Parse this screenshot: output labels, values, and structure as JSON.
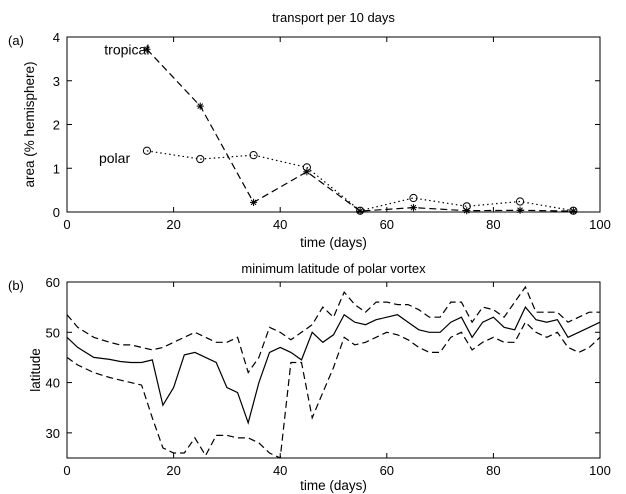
{
  "chart_data": [
    {
      "panel_label": "(a)",
      "type": "line",
      "title": "transport per 10 days",
      "xlabel": "time (days)",
      "ylabel": "area (% hemisphere)",
      "xlim": [
        0,
        100
      ],
      "ylim": [
        0,
        4
      ],
      "xticks": [
        0,
        20,
        40,
        60,
        80,
        100
      ],
      "yticks": [
        0,
        1,
        2,
        3,
        4
      ],
      "grid": false,
      "series": [
        {
          "name": "tropical",
          "style": "dashed",
          "marker": "asterisk",
          "x": [
            15,
            25,
            35,
            45,
            55,
            65,
            75,
            85,
            95
          ],
          "y": [
            3.72,
            2.42,
            0.22,
            0.92,
            0.02,
            0.1,
            0.03,
            0.04,
            0.02
          ]
        },
        {
          "name": "polar",
          "style": "dotted",
          "marker": "circle",
          "x": [
            15,
            25,
            35,
            45,
            55,
            65,
            75,
            85,
            95
          ],
          "y": [
            1.4,
            1.21,
            1.3,
            1.02,
            0.03,
            0.32,
            0.13,
            0.24,
            0.03
          ]
        }
      ]
    },
    {
      "panel_label": "(b)",
      "type": "line",
      "title": "minimum latitude of polar vortex",
      "xlabel": "time (days)",
      "ylabel": "latitude",
      "xlim": [
        0,
        100
      ],
      "ylim": [
        25,
        60
      ],
      "xticks": [
        0,
        20,
        40,
        60,
        80,
        100
      ],
      "yticks": [
        30,
        40,
        50,
        60
      ],
      "grid": false,
      "series": [
        {
          "style": "solid",
          "x": [
            0,
            2,
            5,
            8,
            10,
            12,
            14,
            16,
            18,
            20,
            22,
            24,
            26,
            28,
            30,
            32,
            34,
            36,
            38,
            40,
            42,
            44,
            46,
            48,
            50,
            52,
            54,
            56,
            58,
            60,
            62,
            64,
            66,
            68,
            70,
            72,
            74,
            76,
            78,
            80,
            82,
            84,
            86,
            88,
            90,
            92,
            94,
            96,
            98,
            100
          ],
          "y": [
            49,
            47,
            45,
            44.6,
            44.2,
            44,
            44,
            44.5,
            35.5,
            39,
            45.5,
            46,
            45,
            44,
            39,
            38,
            32,
            40,
            46,
            47,
            46,
            44.5,
            50,
            48,
            49.5,
            53.5,
            52,
            51.5,
            52.5,
            53,
            53.5,
            52,
            50.5,
            50,
            50,
            52,
            53,
            49,
            52,
            53,
            51,
            50.5,
            55,
            52.5,
            52,
            52.5,
            49,
            50,
            51,
            52
          ]
        },
        {
          "style": "dashed",
          "x": [
            0,
            2,
            5,
            8,
            10,
            12,
            14,
            16,
            18,
            20,
            22,
            24,
            26,
            28,
            30,
            32,
            34,
            36,
            38,
            40,
            42,
            44,
            46,
            48,
            50,
            52,
            54,
            56,
            58,
            60,
            62,
            64,
            66,
            68,
            70,
            72,
            74,
            76,
            78,
            80,
            82,
            84,
            86,
            88,
            90,
            92,
            94,
            96,
            98,
            100
          ],
          "y": [
            53.5,
            51,
            49,
            48,
            47.5,
            47.5,
            47,
            46.5,
            47,
            48,
            49,
            50,
            49,
            48,
            48,
            49,
            42,
            45,
            51,
            50,
            48.5,
            50,
            51.5,
            55,
            53,
            58,
            55.5,
            54,
            56,
            56,
            55.5,
            55.5,
            54.5,
            53,
            53,
            56,
            56,
            52,
            55,
            54.5,
            53,
            56,
            59,
            54,
            54,
            54,
            52,
            53,
            54,
            54
          ]
        },
        {
          "style": "dashed",
          "x": [
            0,
            2,
            5,
            8,
            10,
            12,
            14,
            16,
            18,
            20,
            22,
            24,
            26,
            28,
            30,
            32,
            34,
            36,
            38,
            40,
            42,
            44,
            46,
            48,
            50,
            52,
            54,
            56,
            58,
            60,
            62,
            64,
            66,
            68,
            70,
            72,
            74,
            76,
            78,
            80,
            82,
            84,
            86,
            88,
            90,
            92,
            94,
            96,
            98,
            100
          ],
          "y": [
            45,
            43.5,
            42,
            41,
            40.5,
            40,
            39.5,
            33,
            27,
            26,
            26,
            29,
            25.5,
            29.5,
            29.5,
            29,
            29,
            28,
            26,
            25,
            44,
            44,
            33,
            38,
            43,
            49,
            47.5,
            48,
            49,
            50,
            49.5,
            48.5,
            47,
            46,
            46,
            49,
            50,
            46.5,
            48,
            49,
            48,
            48,
            52,
            50,
            49,
            50,
            47,
            46,
            47,
            49
          ]
        }
      ]
    }
  ],
  "annotations": [
    {
      "panel": 0,
      "text": "tropical",
      "x": 7,
      "y": 3.72
    },
    {
      "panel": 0,
      "text": "polar",
      "x": 6,
      "y": 1.23
    }
  ]
}
